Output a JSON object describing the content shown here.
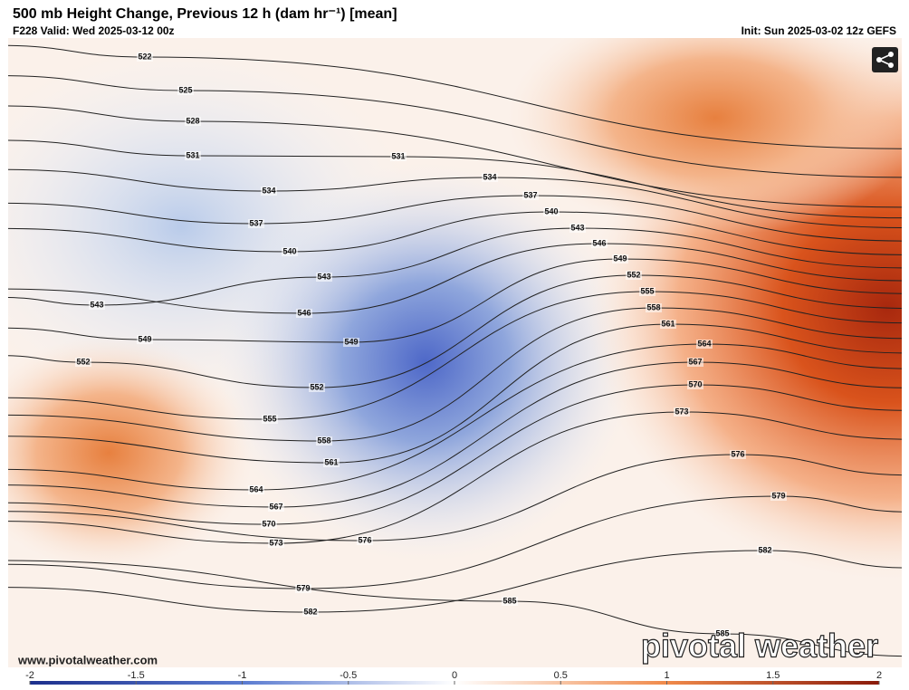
{
  "header": {
    "title": "500 mb Height Change, Previous 12 h (dam hr⁻¹) [mean]",
    "valid": "F228 Valid: Wed 2025-03-12 00z",
    "init": "Init: Sun 2025-03-02 12z GEFS"
  },
  "map": {
    "contour_labels": [
      522,
      525,
      528,
      531,
      531,
      534,
      534,
      537,
      537,
      540,
      540,
      543,
      543,
      543,
      546,
      546,
      549,
      549,
      549,
      552,
      552,
      552,
      555,
      555,
      558,
      558,
      561,
      561,
      564,
      564,
      567,
      567,
      570,
      570,
      573,
      573,
      576,
      576,
      579,
      579,
      582,
      582,
      585,
      585
    ]
  },
  "footer": {
    "website": "www.pivotalweather.com",
    "logo": "pivotal weather"
  },
  "colorbar": {
    "range": [
      -2,
      2
    ],
    "ticks": [
      -2,
      -1.5,
      -1,
      -0.5,
      0,
      0.5,
      1,
      1.5,
      2
    ]
  }
}
